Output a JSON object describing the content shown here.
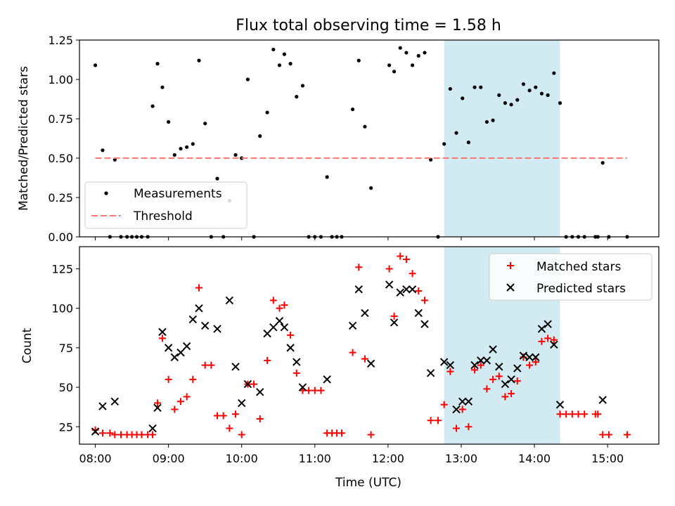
{
  "chart_data": {
    "title": "Flux total observing time = 1.58 h",
    "xlabel": "Time (UTC)",
    "xlim": [
      "07:47",
      "15:42"
    ],
    "xticks": [
      "08:00",
      "09:00",
      "10:00",
      "11:00",
      "12:00",
      "13:00",
      "14:00",
      "15:00"
    ],
    "highlight_span": [
      "12:46",
      "14:21"
    ],
    "highlight_color": "#add8e6",
    "panels": [
      {
        "type": "scatter",
        "ylabel": "Matched/Predicted stars",
        "ylim": [
          0,
          1.25
        ],
        "yticks": [
          "0.00",
          "0.25",
          "0.50",
          "0.75",
          "1.00",
          "1.25"
        ],
        "legend_position": "lower-left",
        "series": [
          {
            "name": "Measurements",
            "type": "scatter",
            "marker": "dot",
            "color": "#000000",
            "points": [
              [
                "08:00",
                1.09
              ],
              [
                "08:06",
                0.55
              ],
              [
                "08:12",
                0.0
              ],
              [
                "08:16",
                0.49
              ],
              [
                "08:21",
                0.0
              ],
              [
                "08:26",
                0.0
              ],
              [
                "08:30",
                0.0
              ],
              [
                "08:34",
                0.0
              ],
              [
                "08:38",
                0.0
              ],
              [
                "08:43",
                0.0
              ],
              [
                "08:47",
                0.83
              ],
              [
                "08:51",
                1.1
              ],
              [
                "08:55",
                0.95
              ],
              [
                "09:00",
                0.73
              ],
              [
                "09:05",
                0.52
              ],
              [
                "09:10",
                0.56
              ],
              [
                "09:15",
                0.57
              ],
              [
                "09:20",
                0.59
              ],
              [
                "09:25",
                1.12
              ],
              [
                "09:30",
                0.72
              ],
              [
                "09:35",
                0.0
              ],
              [
                "09:40",
                0.37
              ],
              [
                "09:45",
                0.0
              ],
              [
                "09:50",
                0.23
              ],
              [
                "09:55",
                0.52
              ],
              [
                "10:00",
                0.5
              ],
              [
                "10:05",
                1.0
              ],
              [
                "10:10",
                0.0
              ],
              [
                "10:15",
                0.64
              ],
              [
                "10:21",
                0.79
              ],
              [
                "10:26",
                1.19
              ],
              [
                "10:31",
                1.09
              ],
              [
                "10:35",
                1.16
              ],
              [
                "10:40",
                1.1
              ],
              [
                "10:45",
                0.89
              ],
              [
                "10:50",
                0.96
              ],
              [
                "10:55",
                0.0
              ],
              [
                "11:00",
                0.0
              ],
              [
                "11:05",
                0.0
              ],
              [
                "11:10",
                0.38
              ],
              [
                "11:14",
                0.0
              ],
              [
                "11:18",
                0.0
              ],
              [
                "11:22",
                0.0
              ],
              [
                "11:31",
                0.81
              ],
              [
                "11:36",
                1.12
              ],
              [
                "11:41",
                0.7
              ],
              [
                "11:46",
                0.31
              ],
              [
                "12:01",
                1.09
              ],
              [
                "12:05",
                1.05
              ],
              [
                "12:10",
                1.2
              ],
              [
                "12:15",
                1.17
              ],
              [
                "12:20",
                1.09
              ],
              [
                "12:25",
                1.15
              ],
              [
                "12:30",
                1.17
              ],
              [
                "12:35",
                0.49
              ],
              [
                "12:41",
                0.0
              ],
              [
                "12:46",
                0.59
              ],
              [
                "12:51",
                0.94
              ],
              [
                "12:56",
                0.66
              ],
              [
                "13:01",
                0.88
              ],
              [
                "13:06",
                0.6
              ],
              [
                "13:11",
                0.95
              ],
              [
                "13:16",
                0.95
              ],
              [
                "13:21",
                0.73
              ],
              [
                "13:26",
                0.74
              ],
              [
                "13:31",
                0.9
              ],
              [
                "13:36",
                0.85
              ],
              [
                "13:41",
                0.84
              ],
              [
                "13:46",
                0.87
              ],
              [
                "13:51",
                0.97
              ],
              [
                "13:56",
                0.93
              ],
              [
                "14:01",
                0.95
              ],
              [
                "14:06",
                0.91
              ],
              [
                "14:11",
                0.9
              ],
              [
                "14:16",
                1.04
              ],
              [
                "14:21",
                0.85
              ],
              [
                "14:26",
                0.0
              ],
              [
                "14:31",
                0.0
              ],
              [
                "14:36",
                0.0
              ],
              [
                "14:41",
                0.0
              ],
              [
                "14:50",
                0.0
              ],
              [
                "14:52",
                0.0
              ],
              [
                "14:56",
                0.47
              ],
              [
                "15:01",
                0.0
              ],
              [
                "15:16",
                0.0
              ]
            ]
          },
          {
            "name": "Threshold",
            "type": "line",
            "style": "dashed",
            "color": "#ff7777",
            "points": [
              [
                "08:00",
                0.5
              ],
              [
                "15:16",
                0.5
              ]
            ]
          }
        ]
      },
      {
        "type": "scatter",
        "ylabel": "Count",
        "ylim": [
          14,
          139
        ],
        "yticks": [
          "25",
          "50",
          "75",
          "100",
          "125"
        ],
        "legend_position": "upper-right",
        "series": [
          {
            "name": "Matched stars",
            "marker": "plus",
            "color": "#ff0000",
            "points": [
              [
                "08:00",
                23
              ],
              [
                "08:06",
                21
              ],
              [
                "08:12",
                21
              ],
              [
                "08:16",
                20
              ],
              [
                "08:21",
                20
              ],
              [
                "08:26",
                20
              ],
              [
                "08:30",
                20
              ],
              [
                "08:34",
                20
              ],
              [
                "08:38",
                20
              ],
              [
                "08:43",
                20
              ],
              [
                "08:47",
                20
              ],
              [
                "08:51",
                40
              ],
              [
                "08:55",
                81
              ],
              [
                "09:00",
                55
              ],
              [
                "09:05",
                36
              ],
              [
                "09:10",
                41
              ],
              [
                "09:15",
                44
              ],
              [
                "09:20",
                55
              ],
              [
                "09:25",
                113
              ],
              [
                "09:30",
                64
              ],
              [
                "09:35",
                64
              ],
              [
                "09:40",
                32
              ],
              [
                "09:45",
                32
              ],
              [
                "09:50",
                24
              ],
              [
                "09:55",
                33
              ],
              [
                "10:00",
                20
              ],
              [
                "10:05",
                52
              ],
              [
                "10:10",
                52
              ],
              [
                "10:15",
                30
              ],
              [
                "10:21",
                67
              ],
              [
                "10:26",
                105
              ],
              [
                "10:31",
                100
              ],
              [
                "10:35",
                102
              ],
              [
                "10:40",
                83
              ],
              [
                "10:45",
                59
              ],
              [
                "10:50",
                48
              ],
              [
                "10:55",
                48
              ],
              [
                "11:00",
                48
              ],
              [
                "11:05",
                48
              ],
              [
                "11:10",
                21
              ],
              [
                "11:14",
                21
              ],
              [
                "11:18",
                21
              ],
              [
                "11:22",
                21
              ],
              [
                "11:31",
                72
              ],
              [
                "11:36",
                126
              ],
              [
                "11:41",
                68
              ],
              [
                "11:46",
                20
              ],
              [
                "12:01",
                125
              ],
              [
                "12:05",
                95
              ],
              [
                "12:10",
                133
              ],
              [
                "12:15",
                131
              ],
              [
                "12:20",
                122
              ],
              [
                "12:25",
                111
              ],
              [
                "12:30",
                105
              ],
              [
                "12:35",
                29
              ],
              [
                "12:41",
                29
              ],
              [
                "12:46",
                39
              ],
              [
                "12:51",
                60
              ],
              [
                "12:56",
                24
              ],
              [
                "13:01",
                36
              ],
              [
                "13:06",
                25
              ],
              [
                "13:11",
                61
              ],
              [
                "13:16",
                64
              ],
              [
                "13:21",
                49
              ],
              [
                "13:26",
                55
              ],
              [
                "13:31",
                57
              ],
              [
                "13:36",
                44
              ],
              [
                "13:41",
                46
              ],
              [
                "13:46",
                54
              ],
              [
                "13:51",
                69
              ],
              [
                "13:56",
                64
              ],
              [
                "14:01",
                66
              ],
              [
                "14:06",
                79
              ],
              [
                "14:11",
                81
              ],
              [
                "14:16",
                80
              ],
              [
                "14:21",
                33
              ],
              [
                "14:26",
                33
              ],
              [
                "14:31",
                33
              ],
              [
                "14:36",
                33
              ],
              [
                "14:41",
                33
              ],
              [
                "14:50",
                33
              ],
              [
                "14:52",
                33
              ],
              [
                "14:56",
                20
              ],
              [
                "15:01",
                20
              ],
              [
                "15:16",
                20
              ]
            ]
          },
          {
            "name": "Predicted stars",
            "marker": "x",
            "color": "#000000",
            "points": [
              [
                "08:00",
                22
              ],
              [
                "08:06",
                38
              ],
              [
                "08:16",
                41
              ],
              [
                "08:47",
                24
              ],
              [
                "08:51",
                37
              ],
              [
                "08:55",
                85
              ],
              [
                "09:00",
                75
              ],
              [
                "09:05",
                69
              ],
              [
                "09:10",
                72
              ],
              [
                "09:15",
                76
              ],
              [
                "09:20",
                93
              ],
              [
                "09:25",
                100
              ],
              [
                "09:30",
                89
              ],
              [
                "09:40",
                87
              ],
              [
                "09:50",
                105
              ],
              [
                "09:55",
                63
              ],
              [
                "10:00",
                40
              ],
              [
                "10:05",
                52
              ],
              [
                "10:15",
                47
              ],
              [
                "10:21",
                84
              ],
              [
                "10:26",
                88
              ],
              [
                "10:31",
                92
              ],
              [
                "10:35",
                88
              ],
              [
                "10:40",
                75
              ],
              [
                "10:45",
                66
              ],
              [
                "10:50",
                50
              ],
              [
                "11:10",
                55
              ],
              [
                "11:31",
                89
              ],
              [
                "11:36",
                112
              ],
              [
                "11:41",
                97
              ],
              [
                "11:46",
                65
              ],
              [
                "12:01",
                115
              ],
              [
                "12:05",
                91
              ],
              [
                "12:10",
                110
              ],
              [
                "12:15",
                112
              ],
              [
                "12:20",
                112
              ],
              [
                "12:25",
                97
              ],
              [
                "12:30",
                90
              ],
              [
                "12:35",
                59
              ],
              [
                "12:46",
                66
              ],
              [
                "12:51",
                64
              ],
              [
                "12:56",
                36
              ],
              [
                "13:01",
                41
              ],
              [
                "13:06",
                41
              ],
              [
                "13:11",
                64
              ],
              [
                "13:16",
                67
              ],
              [
                "13:21",
                67
              ],
              [
                "13:26",
                74
              ],
              [
                "13:31",
                63
              ],
              [
                "13:36",
                52
              ],
              [
                "13:41",
                55
              ],
              [
                "13:46",
                62
              ],
              [
                "13:51",
                70
              ],
              [
                "13:56",
                69
              ],
              [
                "14:01",
                69
              ],
              [
                "14:06",
                87
              ],
              [
                "14:11",
                90
              ],
              [
                "14:16",
                77
              ],
              [
                "14:21",
                39
              ],
              [
                "14:56",
                42
              ]
            ]
          }
        ]
      }
    ]
  }
}
